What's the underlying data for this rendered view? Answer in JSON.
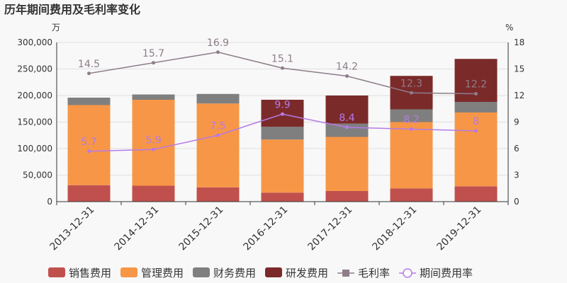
{
  "header": {
    "title": "历年期间费用及毛利率变化",
    "left_unit": "万",
    "right_unit": "%"
  },
  "colors": {
    "sales": "#c0504d",
    "admin": "#f79646",
    "finance": "#7f7f7f",
    "rd": "#7b2a2a",
    "gross_margin": "#8e7d8a",
    "period_rate": "#b57be8"
  },
  "chart_data": {
    "type": "bar",
    "stacked": true,
    "categories": [
      "2013-12-31",
      "2014-12-31",
      "2015-12-31",
      "2016-12-31",
      "2017-12-31",
      "2018-12-31",
      "2019-12-31"
    ],
    "series": [
      {
        "name": "销售费用",
        "values": [
          31000,
          30000,
          27000,
          17000,
          20000,
          25000,
          29000
        ]
      },
      {
        "name": "管理费用",
        "values": [
          151000,
          162000,
          158000,
          100000,
          102000,
          125000,
          139000
        ]
      },
      {
        "name": "财务费用",
        "values": [
          14000,
          10000,
          18000,
          24000,
          25000,
          24000,
          20000
        ]
      },
      {
        "name": "研发费用",
        "values": [
          0,
          0,
          0,
          51000,
          53000,
          63000,
          81000
        ]
      }
    ],
    "lines": [
      {
        "name": "毛利率",
        "axis": "right",
        "values": [
          14.5,
          15.7,
          16.9,
          15.1,
          14.2,
          12.3,
          12.2
        ],
        "labels": [
          "14.5",
          "15.7",
          "16.9",
          "15.1",
          "14.2",
          "12.3",
          "12.2"
        ]
      },
      {
        "name": "期间费用率",
        "axis": "right",
        "values": [
          5.7,
          5.9,
          7.5,
          9.9,
          8.4,
          8.2,
          8.0
        ],
        "labels": [
          "5.7",
          "5.9",
          "7.5",
          "9.9",
          "8.4",
          "8.2",
          "8"
        ]
      }
    ],
    "left_axis": {
      "min": 0,
      "max": 300000,
      "ticks": [
        "0",
        "50,000",
        "100,000",
        "150,000",
        "200,000",
        "250,000",
        "300,000"
      ]
    },
    "right_axis": {
      "min": 0,
      "max": 18,
      "ticks": [
        "0",
        "3",
        "6",
        "9",
        "12",
        "15",
        "18"
      ]
    },
    "legend": {
      "position": "bottom"
    }
  }
}
